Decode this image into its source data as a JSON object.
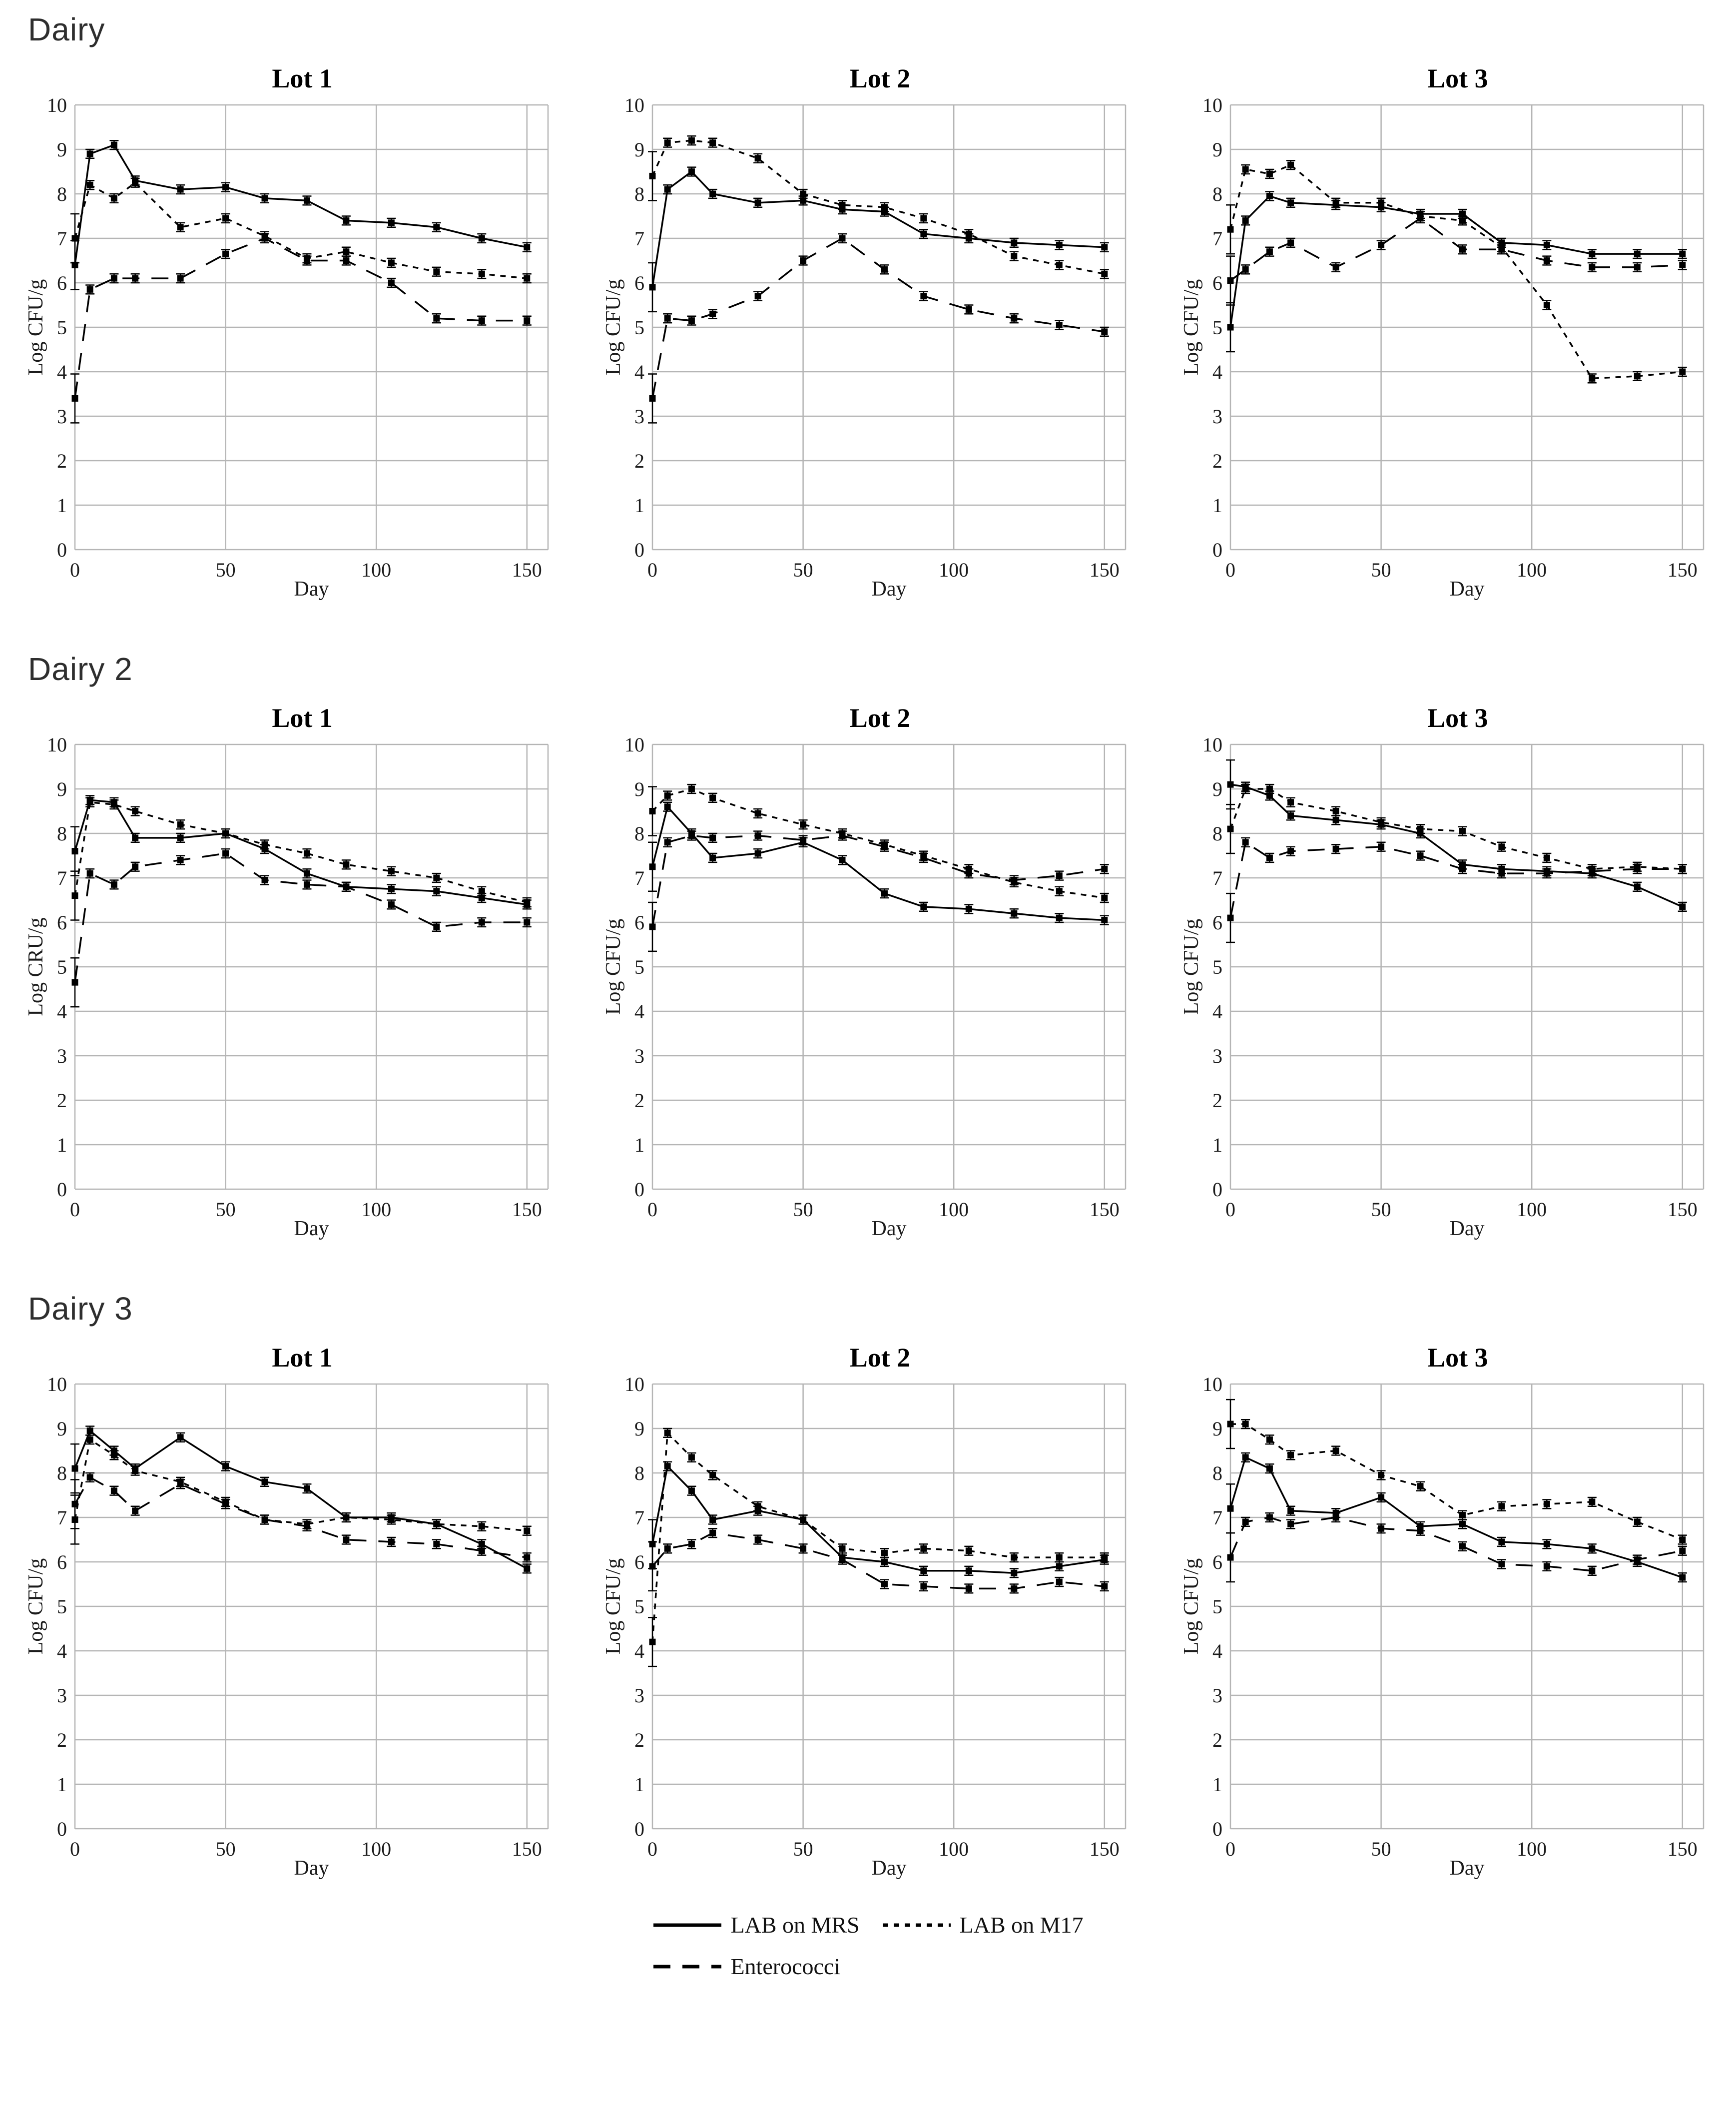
{
  "sections": [
    {
      "label": "Dairy"
    },
    {
      "label": "Dairy 2"
    },
    {
      "label": "Dairy 3"
    }
  ],
  "legend": {
    "items": [
      {
        "label": "LAB on MRS",
        "style": "solid"
      },
      {
        "label": "LAB on M17",
        "style": "dashed"
      },
      {
        "label": "Enterococci",
        "style": "longdash"
      }
    ],
    "position": "bottom-center"
  },
  "palette": {
    "line": "#000000",
    "grid": "#b5b5b5",
    "text": "#1b1b1b",
    "section_label": "#2e2e2e",
    "background": "#ffffff"
  },
  "chart_data": [
    {
      "type": "line",
      "section": "Dairy",
      "title": "Lot 1",
      "xlabel": "Day",
      "ylabel": "Log CFU/g",
      "xlim": [
        0,
        157
      ],
      "ylim": [
        0,
        10
      ],
      "grid": true,
      "xticks": [
        0,
        50,
        100,
        150
      ],
      "yticks": [
        0,
        1,
        2,
        3,
        4,
        5,
        6,
        7,
        8,
        9,
        10
      ],
      "x": [
        0,
        5,
        13,
        20,
        35,
        50,
        63,
        77,
        90,
        105,
        120,
        135,
        150
      ],
      "series": [
        {
          "name": "LAB on MRS",
          "style": "solid",
          "values": [
            6.4,
            8.9,
            9.1,
            8.3,
            8.1,
            8.15,
            7.9,
            7.85,
            7.4,
            7.35,
            7.25,
            7.0,
            6.8
          ]
        },
        {
          "name": "LAB on M17",
          "style": "dashed",
          "values": [
            7.0,
            8.2,
            7.9,
            8.25,
            7.25,
            7.45,
            7.05,
            6.55,
            6.7,
            6.45,
            6.25,
            6.2,
            6.1
          ]
        },
        {
          "name": "Enterococci",
          "style": "longdash",
          "values": [
            3.4,
            5.85,
            6.1,
            6.1,
            6.1,
            6.65,
            7.0,
            6.5,
            6.5,
            6.0,
            5.2,
            5.15,
            5.15
          ]
        }
      ]
    },
    {
      "type": "line",
      "section": "Dairy",
      "title": "Lot 2",
      "xlabel": "Day",
      "ylabel": "Log CFU/g",
      "xlim": [
        0,
        157
      ],
      "ylim": [
        0,
        10
      ],
      "grid": true,
      "xticks": [
        0,
        50,
        100,
        150
      ],
      "yticks": [
        0,
        1,
        2,
        3,
        4,
        5,
        6,
        7,
        8,
        9,
        10
      ],
      "x": [
        0,
        5,
        13,
        20,
        35,
        50,
        63,
        77,
        90,
        105,
        120,
        135,
        150
      ],
      "series": [
        {
          "name": "LAB on MRS",
          "style": "solid",
          "values": [
            5.9,
            8.1,
            8.5,
            8.0,
            7.8,
            7.85,
            7.65,
            7.6,
            7.1,
            7.0,
            6.9,
            6.85,
            6.8
          ]
        },
        {
          "name": "LAB on M17",
          "style": "dashed",
          "values": [
            8.4,
            9.15,
            9.2,
            9.15,
            8.8,
            8.0,
            7.75,
            7.7,
            7.45,
            7.1,
            6.6,
            6.4,
            6.2
          ]
        },
        {
          "name": "Enterococci",
          "style": "longdash",
          "values": [
            3.4,
            5.2,
            5.15,
            5.3,
            5.7,
            6.5,
            7.0,
            6.3,
            5.7,
            5.4,
            5.2,
            5.05,
            4.9
          ]
        }
      ]
    },
    {
      "type": "line",
      "section": "Dairy",
      "title": "Lot 3",
      "xlabel": "Day",
      "ylabel": "Log CFU/g",
      "xlim": [
        0,
        157
      ],
      "ylim": [
        0,
        10
      ],
      "grid": true,
      "xticks": [
        0,
        50,
        100,
        150
      ],
      "yticks": [
        0,
        1,
        2,
        3,
        4,
        5,
        6,
        7,
        8,
        9,
        10
      ],
      "x": [
        0,
        5,
        13,
        20,
        35,
        50,
        63,
        77,
        90,
        105,
        120,
        135,
        150
      ],
      "series": [
        {
          "name": "LAB on MRS",
          "style": "solid",
          "values": [
            5.0,
            7.4,
            7.95,
            7.8,
            7.75,
            7.7,
            7.55,
            7.55,
            6.9,
            6.85,
            6.65,
            6.65,
            6.65
          ]
        },
        {
          "name": "LAB on M17",
          "style": "dashed",
          "values": [
            7.2,
            8.55,
            8.45,
            8.65,
            7.8,
            7.8,
            7.5,
            7.4,
            6.8,
            5.5,
            3.85,
            3.9,
            4.0
          ]
        },
        {
          "name": "Enterococci",
          "style": "longdash",
          "values": [
            6.05,
            6.3,
            6.7,
            6.9,
            6.35,
            6.85,
            7.45,
            6.75,
            6.75,
            6.5,
            6.35,
            6.35,
            6.4
          ]
        }
      ]
    },
    {
      "type": "line",
      "section": "Dairy 2",
      "title": "Lot 1",
      "xlabel": "Day",
      "ylabel": "Log CRU/g",
      "xlim": [
        0,
        157
      ],
      "ylim": [
        0,
        10
      ],
      "grid": true,
      "xticks": [
        0,
        50,
        100,
        150
      ],
      "yticks": [
        0,
        1,
        2,
        3,
        4,
        5,
        6,
        7,
        8,
        9,
        10
      ],
      "x": [
        0,
        5,
        13,
        20,
        35,
        50,
        63,
        77,
        90,
        105,
        120,
        135,
        150
      ],
      "series": [
        {
          "name": "LAB on MRS",
          "style": "solid",
          "values": [
            7.6,
            8.75,
            8.7,
            7.9,
            7.9,
            8.0,
            7.65,
            7.1,
            6.8,
            6.75,
            6.7,
            6.55,
            6.4
          ]
        },
        {
          "name": "LAB on M17",
          "style": "dashed",
          "values": [
            6.6,
            8.7,
            8.65,
            8.5,
            8.2,
            8.0,
            7.75,
            7.55,
            7.3,
            7.15,
            7.0,
            6.7,
            6.45
          ]
        },
        {
          "name": "Enterococci",
          "style": "longdash",
          "values": [
            4.65,
            7.1,
            6.85,
            7.25,
            7.4,
            7.55,
            6.95,
            6.85,
            6.8,
            6.4,
            5.9,
            6.0,
            6.0
          ]
        }
      ]
    },
    {
      "type": "line",
      "section": "Dairy 2",
      "title": "Lot 2",
      "xlabel": "Day",
      "ylabel": "Log CFU/g",
      "xlim": [
        0,
        157
      ],
      "ylim": [
        0,
        10
      ],
      "grid": true,
      "xticks": [
        0,
        50,
        100,
        150
      ],
      "yticks": [
        0,
        1,
        2,
        3,
        4,
        5,
        6,
        7,
        8,
        9,
        10
      ],
      "x": [
        0,
        5,
        13,
        20,
        35,
        50,
        63,
        77,
        90,
        105,
        120,
        135,
        150
      ],
      "series": [
        {
          "name": "LAB on MRS",
          "style": "solid",
          "values": [
            7.25,
            8.6,
            8.0,
            7.45,
            7.55,
            7.8,
            7.4,
            6.65,
            6.35,
            6.3,
            6.2,
            6.1,
            6.05
          ]
        },
        {
          "name": "LAB on M17",
          "style": "dashed",
          "values": [
            8.5,
            8.85,
            9.0,
            8.8,
            8.45,
            8.2,
            8.0,
            7.75,
            7.5,
            7.2,
            6.9,
            6.7,
            6.55
          ]
        },
        {
          "name": "Enterococci",
          "style": "longdash",
          "values": [
            5.9,
            7.8,
            7.95,
            7.9,
            7.95,
            7.85,
            7.95,
            7.7,
            7.45,
            7.1,
            6.95,
            7.05,
            7.2
          ]
        }
      ]
    },
    {
      "type": "line",
      "section": "Dairy 2",
      "title": "Lot 3",
      "xlabel": "Day",
      "ylabel": "Log CFU/g",
      "xlim": [
        0,
        157
      ],
      "ylim": [
        0,
        10
      ],
      "grid": true,
      "xticks": [
        0,
        50,
        100,
        150
      ],
      "yticks": [
        0,
        1,
        2,
        3,
        4,
        5,
        6,
        7,
        8,
        9,
        10
      ],
      "x": [
        0,
        5,
        13,
        20,
        35,
        50,
        63,
        77,
        90,
        105,
        120,
        135,
        150
      ],
      "series": [
        {
          "name": "LAB on MRS",
          "style": "solid",
          "values": [
            9.1,
            9.05,
            8.85,
            8.4,
            8.3,
            8.2,
            8.0,
            7.3,
            7.2,
            7.15,
            7.1,
            6.8,
            6.35
          ]
        },
        {
          "name": "LAB on M17",
          "style": "dashed",
          "values": [
            8.1,
            9.0,
            9.0,
            8.7,
            8.5,
            8.25,
            8.1,
            8.05,
            7.7,
            7.45,
            7.2,
            7.25,
            7.2
          ]
        },
        {
          "name": "Enterococci",
          "style": "longdash",
          "values": [
            6.1,
            7.8,
            7.45,
            7.6,
            7.65,
            7.7,
            7.5,
            7.2,
            7.1,
            7.1,
            7.15,
            7.2,
            7.2
          ]
        }
      ]
    },
    {
      "type": "line",
      "section": "Dairy 3",
      "title": "Lot 1",
      "xlabel": "Day",
      "ylabel": "Log CFU/g",
      "xlim": [
        0,
        157
      ],
      "ylim": [
        0,
        10
      ],
      "grid": true,
      "xticks": [
        0,
        50,
        100,
        150
      ],
      "yticks": [
        0,
        1,
        2,
        3,
        4,
        5,
        6,
        7,
        8,
        9,
        10
      ],
      "x": [
        0,
        5,
        13,
        20,
        35,
        50,
        63,
        77,
        90,
        105,
        120,
        135,
        150
      ],
      "series": [
        {
          "name": "LAB on MRS",
          "style": "solid",
          "values": [
            8.1,
            8.95,
            8.5,
            8.1,
            8.8,
            8.15,
            7.8,
            7.65,
            7.0,
            7.0,
            6.85,
            6.4,
            5.85
          ]
        },
        {
          "name": "LAB on M17",
          "style": "dashed",
          "values": [
            6.95,
            8.75,
            8.4,
            8.05,
            7.8,
            7.35,
            6.95,
            6.85,
            7.0,
            6.95,
            6.85,
            6.8,
            6.7
          ]
        },
        {
          "name": "Enterococci",
          "style": "longdash",
          "values": [
            7.3,
            7.9,
            7.6,
            7.15,
            7.75,
            7.3,
            6.95,
            6.8,
            6.5,
            6.45,
            6.4,
            6.25,
            6.1
          ]
        }
      ]
    },
    {
      "type": "line",
      "section": "Dairy 3",
      "title": "Lot 2",
      "xlabel": "Day",
      "ylabel": "Log CFU/g",
      "xlim": [
        0,
        157
      ],
      "ylim": [
        0,
        10
      ],
      "grid": true,
      "xticks": [
        0,
        50,
        100,
        150
      ],
      "yticks": [
        0,
        1,
        2,
        3,
        4,
        5,
        6,
        7,
        8,
        9,
        10
      ],
      "x": [
        0,
        5,
        13,
        20,
        35,
        50,
        63,
        77,
        90,
        105,
        120,
        135,
        150
      ],
      "series": [
        {
          "name": "LAB on MRS",
          "style": "solid",
          "values": [
            6.4,
            8.15,
            7.6,
            6.95,
            7.15,
            6.95,
            6.1,
            6.0,
            5.8,
            5.8,
            5.75,
            5.9,
            6.05
          ]
        },
        {
          "name": "LAB on M17",
          "style": "dashed",
          "values": [
            4.2,
            8.9,
            8.35,
            7.95,
            7.25,
            6.95,
            6.3,
            6.2,
            6.3,
            6.25,
            6.1,
            6.1,
            6.1
          ]
        },
        {
          "name": "Enterococci",
          "style": "longdash",
          "values": [
            5.9,
            6.3,
            6.4,
            6.65,
            6.5,
            6.3,
            6.05,
            5.5,
            5.45,
            5.4,
            5.4,
            5.55,
            5.45
          ]
        }
      ]
    },
    {
      "type": "line",
      "section": "Dairy 3",
      "title": "Lot 3",
      "xlabel": "Day",
      "ylabel": "Log CFU/g",
      "xlim": [
        0,
        157
      ],
      "ylim": [
        0,
        10
      ],
      "grid": true,
      "xticks": [
        0,
        50,
        100,
        150
      ],
      "yticks": [
        0,
        1,
        2,
        3,
        4,
        5,
        6,
        7,
        8,
        9,
        10
      ],
      "x": [
        0,
        5,
        13,
        20,
        35,
        50,
        63,
        77,
        90,
        105,
        120,
        135,
        150
      ],
      "series": [
        {
          "name": "LAB on MRS",
          "style": "solid",
          "values": [
            7.2,
            8.35,
            8.1,
            7.15,
            7.1,
            7.45,
            6.8,
            6.85,
            6.45,
            6.4,
            6.3,
            6.0,
            5.65
          ]
        },
        {
          "name": "LAB on M17",
          "style": "dashed",
          "values": [
            9.1,
            9.1,
            8.75,
            8.4,
            8.5,
            7.95,
            7.7,
            7.05,
            7.25,
            7.3,
            7.35,
            6.9,
            6.5
          ]
        },
        {
          "name": "Enterococci",
          "style": "longdash",
          "values": [
            6.1,
            6.9,
            7.0,
            6.85,
            7.0,
            6.75,
            6.7,
            6.35,
            5.95,
            5.9,
            5.8,
            6.05,
            6.25
          ]
        }
      ]
    }
  ]
}
